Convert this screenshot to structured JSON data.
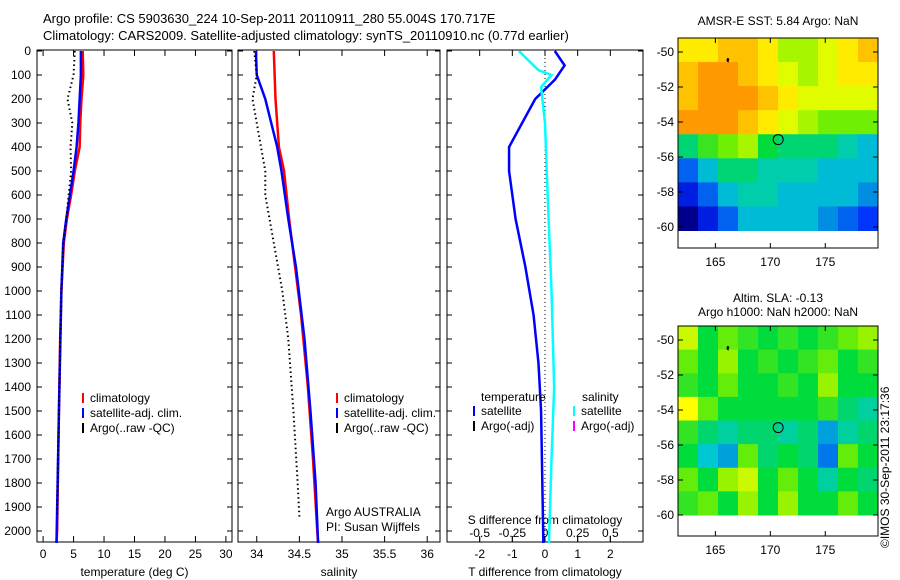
{
  "header": {
    "line1": "Argo profile: CS 5903630_224 10-Sep-2011 20110911_280 55.004S 170.717E",
    "line2": "Climatology: CARS2009. Satellite-adjusted climatology: synTS_20110910.nc (0.77d earlier)"
  },
  "colors": {
    "climatology": "#ff0000",
    "satellite": "#0000ff",
    "argo": "#000000",
    "sal_satellite": "#00ffff",
    "sal_argo": "#ff00ff"
  },
  "chart_data": [
    {
      "type": "line",
      "name": "temperature",
      "xlabel": "temperature (deg C)",
      "xlim": [
        -1,
        31
      ],
      "ylim": [
        2050,
        0
      ],
      "xticks": [
        "0",
        "5",
        "10",
        "15",
        "20",
        "25",
        "30"
      ],
      "xtick_values": [
        0,
        5,
        10,
        15,
        20,
        25,
        30
      ],
      "yticks": [
        "0",
        "100",
        "200",
        "300",
        "400",
        "500",
        "600",
        "700",
        "800",
        "900",
        "1000",
        "1100",
        "1200",
        "1300",
        "1400",
        "1500",
        "1600",
        "1700",
        "1800",
        "1900",
        "2000"
      ],
      "legend": [
        "climatology",
        "satellite-adj. clim.",
        "Argo(..raw -QC)"
      ],
      "series": [
        {
          "name": "climatology",
          "style": "solid",
          "color": "#ff0000",
          "points": [
            [
              0,
              6.5
            ],
            [
              100,
              6.6
            ],
            [
              200,
              6.3
            ],
            [
              300,
              6.1
            ],
            [
              400,
              6.0
            ],
            [
              500,
              5.2
            ],
            [
              600,
              4.6
            ],
            [
              700,
              3.9
            ],
            [
              800,
              3.4
            ],
            [
              900,
              3.2
            ],
            [
              1000,
              3.0
            ],
            [
              1200,
              2.8
            ],
            [
              1500,
              2.6
            ],
            [
              2000,
              2.3
            ],
            [
              2050,
              2.2
            ]
          ]
        },
        {
          "name": "satellite-adj. clim.",
          "style": "solid",
          "color": "#0000ff",
          "points": [
            [
              0,
              6.2
            ],
            [
              100,
              6.2
            ],
            [
              200,
              6.0
            ],
            [
              300,
              5.8
            ],
            [
              400,
              5.5
            ],
            [
              500,
              5.0
            ],
            [
              600,
              4.4
            ],
            [
              700,
              3.8
            ],
            [
              800,
              3.3
            ],
            [
              1000,
              3.0
            ],
            [
              1500,
              2.6
            ],
            [
              2050,
              2.2
            ]
          ]
        },
        {
          "name": "Argo(..raw -QC)",
          "style": "dotted",
          "color": "#000000",
          "points": [
            [
              0,
              5.2
            ],
            [
              100,
              5.0
            ],
            [
              200,
              4.0
            ],
            [
              300,
              4.8
            ],
            [
              400,
              4.5
            ],
            [
              500,
              4.6
            ],
            [
              600,
              4.2
            ],
            [
              700,
              3.8
            ],
            [
              800,
              3.3
            ],
            [
              1000,
              3.0
            ],
            [
              1500,
              2.6
            ],
            [
              1940,
              2.3
            ]
          ]
        }
      ]
    },
    {
      "type": "line",
      "name": "salinity",
      "xlabel": "salinity",
      "xlim": [
        33.78,
        36.15
      ],
      "ylim": [
        2050,
        0
      ],
      "xticks": [
        "34",
        "34.5",
        "35",
        "35.5",
        "36"
      ],
      "xtick_values": [
        34,
        34.5,
        35,
        35.5,
        36
      ],
      "legend": [
        "climatology",
        "satellite-adj. clim.",
        "Argo(..raw -QC)"
      ],
      "annotation": [
        "Argo AUSTRALIA",
        "PI: Susan Wijffels"
      ],
      "series": [
        {
          "name": "climatology",
          "style": "solid",
          "color": "#ff0000",
          "points": [
            [
              0,
              34.2
            ],
            [
              200,
              34.22
            ],
            [
              400,
              34.26
            ],
            [
              500,
              34.32
            ],
            [
              700,
              34.38
            ],
            [
              900,
              34.45
            ],
            [
              1100,
              34.52
            ],
            [
              1400,
              34.6
            ],
            [
              1700,
              34.66
            ],
            [
              2000,
              34.71
            ],
            [
              2050,
              34.72
            ]
          ]
        },
        {
          "name": "satellite-adj. clim.",
          "style": "solid",
          "color": "#0000ff",
          "points": [
            [
              0,
              33.99
            ],
            [
              100,
              34.0
            ],
            [
              200,
              34.1
            ],
            [
              300,
              34.17
            ],
            [
              400,
              34.24
            ],
            [
              500,
              34.29
            ],
            [
              700,
              34.37
            ],
            [
              900,
              34.46
            ],
            [
              1200,
              34.56
            ],
            [
              1500,
              34.63
            ],
            [
              1800,
              34.69
            ],
            [
              2050,
              34.72
            ]
          ]
        },
        {
          "name": "Argo(..raw -QC)",
          "style": "dotted",
          "color": "#000000",
          "points": [
            [
              0,
              33.97
            ],
            [
              100,
              34.0
            ],
            [
              200,
              33.95
            ],
            [
              300,
              34.0
            ],
            [
              400,
              34.05
            ],
            [
              500,
              34.1
            ],
            [
              600,
              34.1
            ],
            [
              800,
              34.2
            ],
            [
              1000,
              34.3
            ],
            [
              1200,
              34.37
            ],
            [
              1500,
              34.43
            ],
            [
              1800,
              34.48
            ],
            [
              1940,
              34.5
            ]
          ]
        }
      ]
    },
    {
      "type": "line",
      "name": "difference",
      "xlabel": "T difference from climatology",
      "x2label": "S difference from climatology",
      "xlim": [
        -3,
        3
      ],
      "ylim": [
        2050,
        0
      ],
      "xticks": [
        "-2",
        "-1",
        "0",
        "1",
        "2"
      ],
      "xtick_values": [
        -2,
        -1,
        0,
        1,
        2
      ],
      "x2ticks": [
        "-0.5",
        "-0.25",
        "0",
        "0.25",
        "0.5"
      ],
      "x2tick_values": [
        -0.5,
        -0.25,
        0,
        0.25,
        0.5
      ],
      "legend_titles": [
        "temperature",
        "salinity"
      ],
      "legend": [
        "satellite",
        "Argo(-adj)",
        "satellite",
        "Argo(-adj)"
      ],
      "series": [
        {
          "name": "T satellite",
          "axis": "T",
          "color": "#0000ff",
          "points": [
            [
              0,
              0.3
            ],
            [
              60,
              0.6
            ],
            [
              120,
              0.3
            ],
            [
              200,
              -0.3
            ],
            [
              300,
              -0.7
            ],
            [
              400,
              -1.1
            ],
            [
              500,
              -1.1
            ],
            [
              700,
              -0.9
            ],
            [
              900,
              -0.6
            ],
            [
              1100,
              -0.35
            ],
            [
              1300,
              -0.2
            ],
            [
              1500,
              -0.12
            ],
            [
              2050,
              -0.05
            ]
          ]
        },
        {
          "name": "S satellite",
          "axis": "S",
          "color": "#00ffff",
          "points": [
            [
              0,
              -0.2
            ],
            [
              80,
              -0.05
            ],
            [
              100,
              0.05
            ],
            [
              150,
              -0.03
            ],
            [
              300,
              0.0
            ],
            [
              600,
              0.02
            ],
            [
              1000,
              0.05
            ],
            [
              1400,
              0.07
            ],
            [
              1700,
              0.05
            ],
            [
              2050,
              0.03
            ]
          ]
        }
      ]
    },
    {
      "type": "heatmap",
      "name": "sst_map",
      "title": "AMSR-E SST: 5.84 Argo: NaN",
      "xlim": [
        161.6,
        179.8
      ],
      "ylim": [
        -61.2,
        -49.2
      ],
      "xticks": [
        "165",
        "170",
        "175"
      ],
      "xtick_values": [
        165,
        170,
        175
      ],
      "yticks": [
        "-50",
        "-52",
        "-54",
        "-56",
        "-58",
        "-60"
      ],
      "ytick_values": [
        -50,
        -52,
        -54,
        -56,
        -58,
        -60
      ],
      "lat_top": -49.2,
      "lat_bottom": -60.2,
      "profile": [
        170.717,
        -55.004
      ],
      "crange": [
        2,
        11
      ],
      "grid": [
        [
          9,
          9,
          9.5,
          9.5,
          9,
          8,
          8,
          8.5,
          9,
          9.5
        ],
        [
          9.5,
          10,
          10,
          9.5,
          9,
          8.5,
          8,
          8.5,
          9,
          9
        ],
        [
          9.5,
          10,
          10,
          10,
          9.5,
          9,
          8.5,
          8.5,
          8.5,
          8.5
        ],
        [
          10,
          10,
          10,
          9.5,
          9,
          8.5,
          8,
          7.5,
          7.5,
          7.5
        ],
        [
          6,
          7,
          7.5,
          8,
          6.5,
          6,
          6,
          6,
          5.5,
          5
        ],
        [
          4,
          5,
          6,
          6,
          5.5,
          5.5,
          5.5,
          5,
          5,
          5
        ],
        [
          3,
          4,
          5,
          5.5,
          5.5,
          5,
          5,
          5,
          5,
          4.5
        ],
        [
          2,
          3,
          4,
          5,
          5,
          5,
          5,
          4.5,
          4,
          3.5
        ]
      ]
    },
    {
      "type": "heatmap",
      "name": "sla_map",
      "title": [
        "Altim. SLA: -0.13",
        "Argo h1000: NaN h2000: NaN"
      ],
      "xlim": [
        161.6,
        179.8
      ],
      "ylim": [
        -61.2,
        -49.2
      ],
      "xticks": [
        "165",
        "170",
        "175"
      ],
      "xtick_values": [
        165,
        170,
        175
      ],
      "yticks": [
        "-50",
        "-52",
        "-54",
        "-56",
        "-58",
        "-60"
      ],
      "ytick_values": [
        -50,
        -52,
        -54,
        -56,
        -58,
        -60
      ],
      "lat_top": -49.2,
      "lat_bottom": -60,
      "profile": [
        170.717,
        -55.004
      ],
      "crange": [
        -1,
        1
      ],
      "grid": [
        [
          0.4,
          0,
          0.2,
          0.1,
          0,
          0.1,
          0,
          0.1,
          0.2,
          0.3
        ],
        [
          0.2,
          0,
          0.3,
          0,
          0.1,
          0,
          0.1,
          0.2,
          0,
          0.1
        ],
        [
          0.1,
          0,
          0.2,
          0,
          0,
          0.1,
          0,
          0.3,
          0,
          0
        ],
        [
          0.5,
          0.2,
          0,
          0,
          0,
          0,
          0,
          0.1,
          -0.1,
          -0.2
        ],
        [
          0.1,
          -0.1,
          -0.2,
          -0.1,
          -0.1,
          -0.2,
          -0.1,
          -0.4,
          -0.2,
          -0.1
        ],
        [
          0,
          -0.3,
          -0.4,
          0.2,
          -0.1,
          0,
          -0.1,
          -0.5,
          0.2,
          0
        ],
        [
          0.2,
          0,
          0.3,
          0.4,
          0,
          0.2,
          0,
          -0.2,
          0,
          -0.1
        ],
        [
          0.1,
          0.2,
          0,
          0.3,
          0,
          0.3,
          0,
          0,
          0.2,
          0
        ]
      ]
    }
  ],
  "footer": {
    "stamp": "©IMOS 30-Sep-2011 23:17:36"
  }
}
